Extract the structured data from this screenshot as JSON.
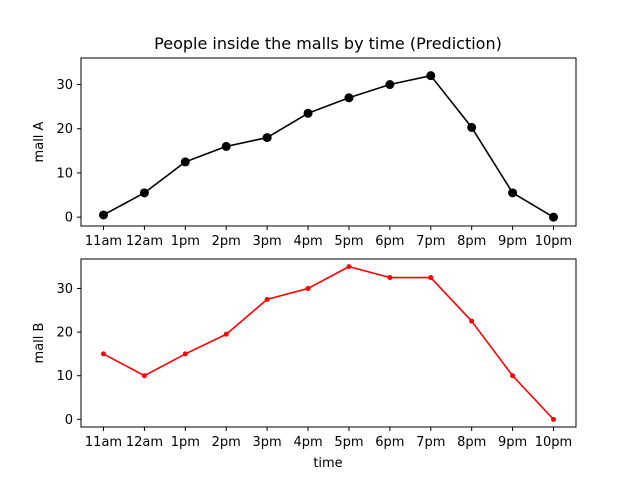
{
  "chart_data": [
    {
      "type": "line",
      "title": "People inside the malls by time (Prediction)",
      "xlabel": "",
      "ylabel": "mall A",
      "categories": [
        "11am",
        "12am",
        "1pm",
        "2pm",
        "3pm",
        "4pm",
        "5pm",
        "6pm",
        "7pm",
        "8pm",
        "9pm",
        "10pm"
      ],
      "yticks": [
        0,
        10,
        20,
        30
      ],
      "ylim": [
        -2,
        36
      ],
      "grid": false,
      "series": [
        {
          "values": [
            0.5,
            5.5,
            12.5,
            16,
            18,
            23.5,
            27,
            30,
            32,
            20.3,
            5.5,
            0
          ],
          "color": "#000000",
          "marker": "circle-large"
        }
      ]
    },
    {
      "type": "line",
      "title": "",
      "xlabel": "time",
      "ylabel": "mall B",
      "categories": [
        "11am",
        "12am",
        "1pm",
        "2pm",
        "3pm",
        "4pm",
        "5pm",
        "6pm",
        "7pm",
        "8pm",
        "9pm",
        "10pm"
      ],
      "yticks": [
        0,
        10,
        20,
        30
      ],
      "ylim": [
        -1.75,
        36.75
      ],
      "grid": false,
      "series": [
        {
          "values": [
            15,
            10,
            15,
            19.5,
            27.5,
            30,
            35,
            32.5,
            32.5,
            22.5,
            10,
            0
          ],
          "color": "#ff0000",
          "marker": "circle-small"
        }
      ]
    }
  ]
}
